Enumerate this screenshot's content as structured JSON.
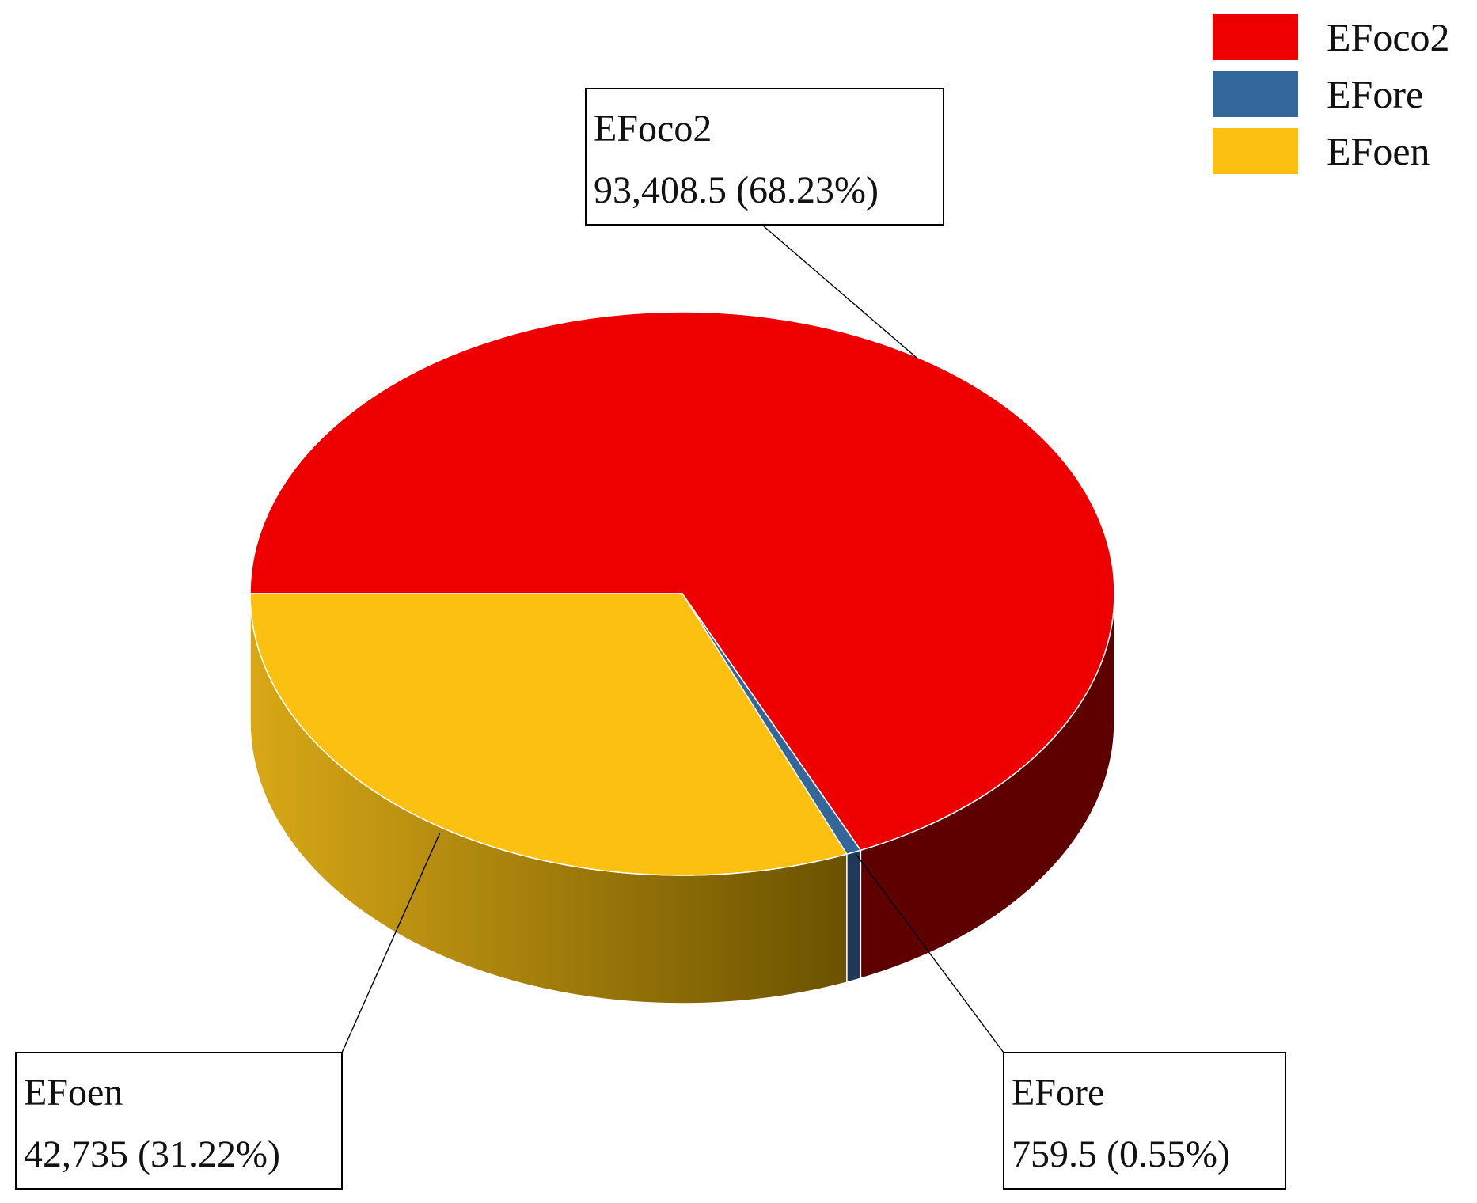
{
  "chart_data": {
    "type": "pie",
    "style": "3d",
    "slices": [
      {
        "name": "EFoco2",
        "value": 93408.5,
        "value_label": "93,408.5",
        "percent_label": "68.23%",
        "color": "#ee0000",
        "side_color": "#5e0000"
      },
      {
        "name": "EFore",
        "value": 759.5,
        "value_label": "759.5",
        "percent_label": "0.55%",
        "color": "#336699",
        "side_color": "#1e3a58"
      },
      {
        "name": "EFoen",
        "value": 42735,
        "value_label": "42,735",
        "percent_label": "31.22%",
        "color": "#fcc010",
        "side_color": "#c89a0c"
      }
    ],
    "legend_position": "top-right",
    "data_labels": "callout boxes with name, value and percent"
  }
}
